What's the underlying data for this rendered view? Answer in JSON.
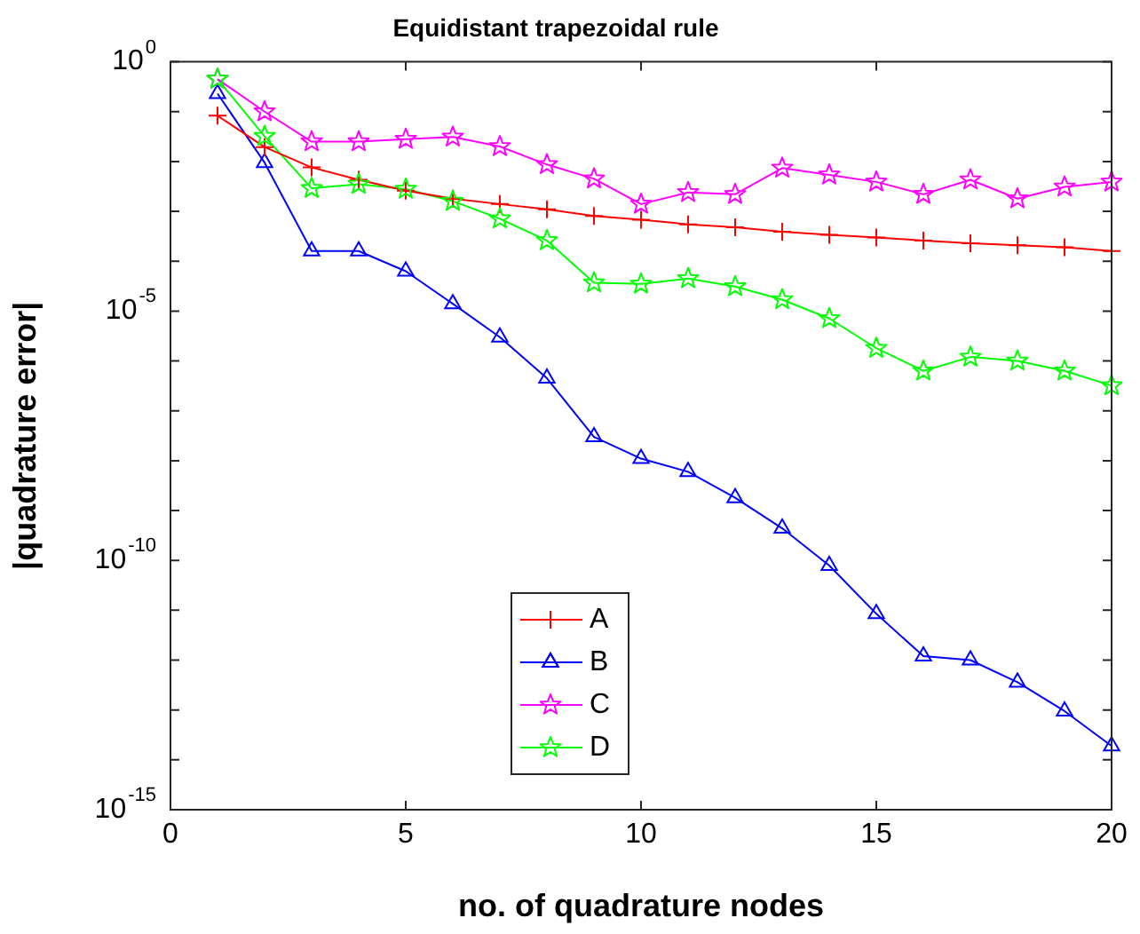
{
  "chart_data": {
    "type": "line",
    "title": "Equidistant trapezoidal rule",
    "xlabel": "no. of quadrature nodes",
    "ylabel": "|quadrature error|",
    "x": [
      1,
      2,
      3,
      4,
      5,
      6,
      7,
      8,
      9,
      10,
      11,
      12,
      13,
      14,
      15,
      16,
      17,
      18,
      19,
      20
    ],
    "xlim": [
      0,
      20
    ],
    "xticks": [
      0,
      5,
      10,
      15,
      20
    ],
    "ylim": [
      1e-15,
      1
    ],
    "yticks": [
      {
        "value": 1,
        "label": "10$^{0}$"
      },
      {
        "value": 0.1,
        "label": null
      },
      {
        "value": 0.01,
        "label": null
      },
      {
        "value": 0.001,
        "label": null
      },
      {
        "value": 0.0001,
        "label": null
      },
      {
        "value": 1e-05,
        "label": "10$^{-5}$"
      },
      {
        "value": 1e-06,
        "label": null
      },
      {
        "value": 1e-07,
        "label": null
      },
      {
        "value": 1e-08,
        "label": null
      },
      {
        "value": 1e-09,
        "label": null
      },
      {
        "value": 1e-10,
        "label": "10$^{-10}$"
      },
      {
        "value": 1e-11,
        "label": null
      },
      {
        "value": 1e-12,
        "label": null
      },
      {
        "value": 1e-13,
        "label": null
      },
      {
        "value": 1e-14,
        "label": null
      },
      {
        "value": 1e-15,
        "label": "10$^{-15}$"
      }
    ],
    "log": "y",
    "grid": false,
    "legend": "bottom",
    "line_style": "solid",
    "series": [
      {
        "name": "A",
        "color": "#ff0000",
        "marker": "cross",
        "values": [
          0.083,
          0.0195,
          0.0076,
          0.0043,
          0.0026,
          0.0018,
          0.0014,
          0.0011,
          0.00081,
          0.00068,
          0.00055,
          0.00048,
          0.00039,
          0.00034,
          0.0003,
          0.00026,
          0.00023,
          0.00021,
          0.00019,
          0.00016
        ]
      },
      {
        "name": "B",
        "color": "#0000ff",
        "marker": "triangle",
        "values": [
          0.23,
          0.0095,
          0.00016,
          0.00016,
          6.3e-05,
          1.4e-05,
          3e-06,
          4.5e-07,
          3e-08,
          1.1e-08,
          6e-09,
          1.8e-09,
          4.4e-10,
          7.9e-11,
          8.5e-12,
          1.2e-12,
          1e-12,
          3.6e-13,
          9.5e-14,
          1.9e-14
        ]
      },
      {
        "name": "C",
        "color": "#ff00ff",
        "marker": "star",
        "values": [
          0.45,
          0.1,
          0.025,
          0.025,
          0.028,
          0.031,
          0.02,
          0.0087,
          0.0045,
          0.0014,
          0.0024,
          0.0022,
          0.0074,
          0.0054,
          0.0039,
          0.0022,
          0.0043,
          0.0018,
          0.0031,
          0.0039
        ]
      },
      {
        "name": "D",
        "color": "#00ff00",
        "marker": "star",
        "values": [
          0.45,
          0.032,
          0.0029,
          0.0035,
          0.0028,
          0.0016,
          0.00071,
          0.00026,
          3.7e-05,
          3.5e-05,
          4.5e-05,
          3.1e-05,
          1.7e-05,
          7.1e-06,
          1.8e-06,
          6.3e-07,
          1.2e-06,
          1e-06,
          6.3e-07,
          3.2e-07
        ]
      }
    ]
  }
}
